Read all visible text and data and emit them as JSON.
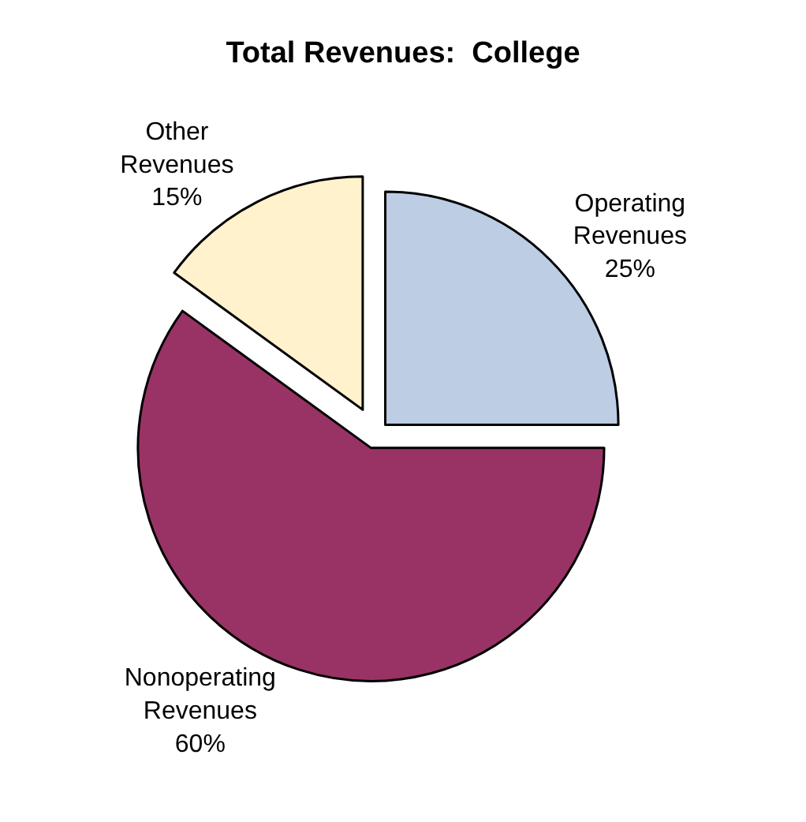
{
  "chart_data": {
    "type": "pie",
    "title": "Total Revenues:  College",
    "categories": [
      "Operating Revenues",
      "Nonoperating Revenues",
      "Other Revenues"
    ],
    "values": [
      25,
      60,
      15
    ],
    "value_labels": [
      "25%",
      "60%",
      "15%"
    ],
    "colors": [
      "#bccde4",
      "#993366",
      "#fff2cc"
    ],
    "legend": false
  }
}
